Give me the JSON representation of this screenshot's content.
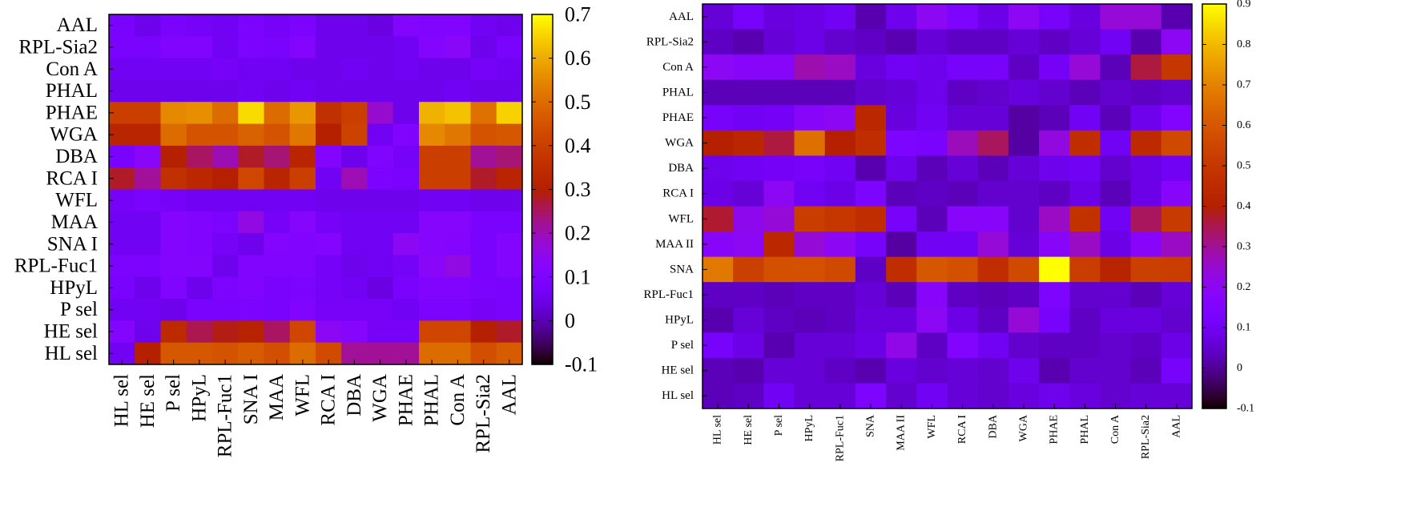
{
  "chart_data": [
    {
      "type": "heatmap",
      "title": "",
      "xlabel": "",
      "ylabel": "",
      "rows": [
        "AAL",
        "RPL-Sia2",
        "Con A",
        "PHAL",
        "PHAE",
        "WGA",
        "DBA",
        "RCA I",
        "WFL",
        "MAA",
        "SNA I",
        "RPL-Fuc1",
        "HPyL",
        "P sel",
        "HE sel",
        "HL sel"
      ],
      "columns": [
        "HL sel",
        "HE sel",
        "P sel",
        "HPyL",
        "RPL-Fuc1",
        "SNA I",
        "MAA",
        "WFL",
        "RCA I",
        "DBA",
        "WGA",
        "PHAE",
        "PHAL",
        "Con A",
        "RPL-Sia2",
        "AAL"
      ],
      "values": [
        [
          0.08,
          0.05,
          0.08,
          0.07,
          0.06,
          0.09,
          0.07,
          0.09,
          0.05,
          0.05,
          0.04,
          0.11,
          0.1,
          0.1,
          0.06,
          0.05
        ],
        [
          0.08,
          0.08,
          0.1,
          0.1,
          0.06,
          0.09,
          0.08,
          0.11,
          0.05,
          0.05,
          0.05,
          0.06,
          0.11,
          0.13,
          0.05,
          0.08
        ],
        [
          0.06,
          0.06,
          0.06,
          0.06,
          0.07,
          0.06,
          0.06,
          0.05,
          0.05,
          0.06,
          0.05,
          0.06,
          0.05,
          0.05,
          0.07,
          0.06
        ],
        [
          0.05,
          0.05,
          0.05,
          0.05,
          0.05,
          0.06,
          0.05,
          0.06,
          0.05,
          0.05,
          0.05,
          0.05,
          0.05,
          0.06,
          0.05,
          0.05
        ],
        [
          0.4,
          0.4,
          0.55,
          0.56,
          0.5,
          0.66,
          0.5,
          0.57,
          0.36,
          0.4,
          0.18,
          0.05,
          0.61,
          0.63,
          0.51,
          0.65
        ],
        [
          0.32,
          0.32,
          0.5,
          0.45,
          0.45,
          0.48,
          0.45,
          0.52,
          0.3,
          0.41,
          0.06,
          0.1,
          0.55,
          0.52,
          0.45,
          0.46
        ],
        [
          0.08,
          0.13,
          0.3,
          0.25,
          0.2,
          0.28,
          0.24,
          0.32,
          0.11,
          0.05,
          0.1,
          0.07,
          0.4,
          0.4,
          0.22,
          0.24
        ],
        [
          0.28,
          0.22,
          0.36,
          0.33,
          0.3,
          0.42,
          0.32,
          0.4,
          0.06,
          0.2,
          0.09,
          0.08,
          0.4,
          0.4,
          0.28,
          0.32
        ],
        [
          0.07,
          0.08,
          0.07,
          0.06,
          0.06,
          0.06,
          0.06,
          0.06,
          0.05,
          0.05,
          0.05,
          0.05,
          0.06,
          0.06,
          0.05,
          0.05
        ],
        [
          0.06,
          0.06,
          0.11,
          0.1,
          0.09,
          0.16,
          0.07,
          0.12,
          0.07,
          0.06,
          0.06,
          0.06,
          0.12,
          0.12,
          0.08,
          0.08
        ],
        [
          0.06,
          0.06,
          0.11,
          0.1,
          0.07,
          0.05,
          0.11,
          0.1,
          0.11,
          0.06,
          0.06,
          0.14,
          0.12,
          0.11,
          0.08,
          0.11
        ],
        [
          0.09,
          0.09,
          0.11,
          0.11,
          0.05,
          0.1,
          0.1,
          0.1,
          0.07,
          0.05,
          0.06,
          0.07,
          0.13,
          0.16,
          0.08,
          0.11
        ],
        [
          0.08,
          0.05,
          0.1,
          0.05,
          0.09,
          0.1,
          0.08,
          0.09,
          0.07,
          0.06,
          0.04,
          0.08,
          0.1,
          0.1,
          0.09,
          0.08
        ],
        [
          0.06,
          0.06,
          0.05,
          0.08,
          0.08,
          0.09,
          0.08,
          0.1,
          0.07,
          0.07,
          0.07,
          0.06,
          0.09,
          0.09,
          0.07,
          0.08
        ],
        [
          0.11,
          0.05,
          0.34,
          0.26,
          0.29,
          0.31,
          0.25,
          0.42,
          0.14,
          0.12,
          0.07,
          0.07,
          0.42,
          0.42,
          0.3,
          0.28
        ],
        [
          0.06,
          0.3,
          0.46,
          0.46,
          0.45,
          0.47,
          0.44,
          0.5,
          0.43,
          0.22,
          0.22,
          0.22,
          0.5,
          0.5,
          0.44,
          0.47
        ]
      ],
      "colorbar": {
        "min": -0.1,
        "max": 0.7,
        "ticks": [
          -0.1,
          0,
          0.1,
          0.2,
          0.3,
          0.4,
          0.5,
          0.6,
          0.7
        ],
        "colormap": "gnuplot-pm3d"
      },
      "grid": false,
      "legend": "colorbar right"
    },
    {
      "type": "heatmap",
      "title": "",
      "xlabel": "",
      "ylabel": "",
      "rows": [
        "AAL",
        "RPL-Sia2",
        "Con A",
        "PHAL",
        "PHAE",
        "WGA",
        "DBA",
        "RCA I",
        "WFL",
        "MAA II",
        "SNA",
        "RPL-Fuc1",
        "HPyL",
        "P sel",
        "HE sel",
        "HL sel"
      ],
      "columns": [
        "HL sel",
        "HE sel",
        "P sel",
        "HPyL",
        "RPL-Fuc1",
        "SNA",
        "MAA II",
        "WFL",
        "RCA I",
        "DBA",
        "WGA",
        "PHAE",
        "PHAL",
        "Con A",
        "RPL-Sia2",
        "AAL"
      ],
      "values": [
        [
          0.06,
          0.12,
          0.07,
          0.08,
          0.1,
          0.02,
          0.09,
          0.2,
          0.14,
          0.08,
          0.2,
          0.12,
          0.07,
          0.24,
          0.24,
          0.02
        ],
        [
          0.04,
          0.02,
          0.06,
          0.08,
          0.05,
          0.04,
          0.02,
          0.06,
          0.04,
          0.04,
          0.06,
          0.04,
          0.06,
          0.1,
          0.02,
          0.2
        ],
        [
          0.2,
          0.18,
          0.18,
          0.28,
          0.26,
          0.07,
          0.1,
          0.09,
          0.12,
          0.12,
          0.04,
          0.11,
          0.24,
          0.03,
          0.36,
          0.5
        ],
        [
          0.03,
          0.03,
          0.03,
          0.03,
          0.03,
          0.05,
          0.06,
          0.09,
          0.04,
          0.05,
          0.07,
          0.05,
          0.03,
          0.05,
          0.04,
          0.05
        ],
        [
          0.12,
          0.1,
          0.11,
          0.18,
          0.2,
          0.44,
          0.07,
          0.1,
          0.06,
          0.06,
          0.01,
          0.03,
          0.1,
          0.03,
          0.09,
          0.16
        ],
        [
          0.4,
          0.43,
          0.36,
          0.66,
          0.4,
          0.46,
          0.14,
          0.13,
          0.27,
          0.34,
          0.01,
          0.23,
          0.46,
          0.1,
          0.45,
          0.56
        ],
        [
          0.09,
          0.1,
          0.11,
          0.12,
          0.1,
          0.02,
          0.09,
          0.03,
          0.06,
          0.03,
          0.06,
          0.09,
          0.1,
          0.05,
          0.08,
          0.1
        ],
        [
          0.08,
          0.06,
          0.2,
          0.1,
          0.08,
          0.14,
          0.03,
          0.04,
          0.03,
          0.05,
          0.05,
          0.04,
          0.08,
          0.03,
          0.08,
          0.18
        ],
        [
          0.37,
          0.21,
          0.24,
          0.52,
          0.5,
          0.46,
          0.12,
          0.03,
          0.18,
          0.18,
          0.05,
          0.26,
          0.48,
          0.1,
          0.34,
          0.51
        ],
        [
          0.18,
          0.2,
          0.44,
          0.24,
          0.2,
          0.12,
          0.01,
          0.1,
          0.1,
          0.24,
          0.06,
          0.18,
          0.26,
          0.08,
          0.18,
          0.26
        ],
        [
          0.68,
          0.53,
          0.58,
          0.58,
          0.56,
          0.04,
          0.46,
          0.6,
          0.58,
          0.46,
          0.56,
          0.9,
          0.52,
          0.42,
          0.53,
          0.52
        ],
        [
          0.04,
          0.04,
          0.03,
          0.04,
          0.04,
          0.06,
          0.03,
          0.18,
          0.04,
          0.03,
          0.04,
          0.14,
          0.05,
          0.05,
          0.03,
          0.06
        ],
        [
          0.02,
          0.06,
          0.04,
          0.03,
          0.04,
          0.07,
          0.07,
          0.2,
          0.08,
          0.04,
          0.24,
          0.12,
          0.04,
          0.07,
          0.07,
          0.05
        ],
        [
          0.12,
          0.08,
          0.02,
          0.06,
          0.06,
          0.08,
          0.22,
          0.04,
          0.16,
          0.1,
          0.05,
          0.04,
          0.04,
          0.05,
          0.04,
          0.08
        ],
        [
          0.03,
          0.02,
          0.06,
          0.06,
          0.04,
          0.02,
          0.07,
          0.05,
          0.06,
          0.05,
          0.09,
          0.02,
          0.05,
          0.05,
          0.03,
          0.12
        ],
        [
          0.03,
          0.04,
          0.1,
          0.06,
          0.06,
          0.14,
          0.05,
          0.1,
          0.06,
          0.05,
          0.07,
          0.09,
          0.07,
          0.05,
          0.06,
          0.06
        ]
      ],
      "colorbar": {
        "min": -0.1,
        "max": 0.9,
        "ticks": [
          -0.1,
          0,
          0.1,
          0.2,
          0.3,
          0.4,
          0.5,
          0.6,
          0.7,
          0.8,
          0.9
        ],
        "colormap": "gnuplot-pm3d"
      },
      "grid": false,
      "legend": "colorbar right"
    }
  ]
}
